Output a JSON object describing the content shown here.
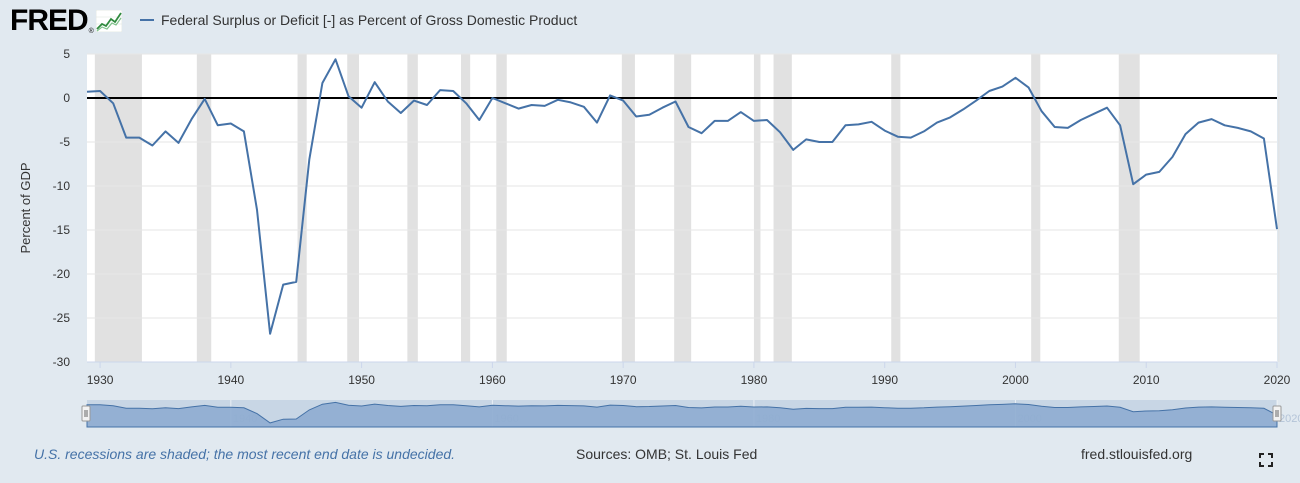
{
  "header": {
    "logo_text": "FRED",
    "logo_reg": "®",
    "legend_label": "Federal Surplus or Deficit [-] as Percent of Gross Domestic Product"
  },
  "footer": {
    "note": "U.S. recessions are shaded; the most recent end date is undecided.",
    "sources": "Sources: OMB; St. Louis Fed",
    "site": "fred.stlouisfed.org"
  },
  "colors": {
    "line": "#4572a7",
    "recession": "#e1e1e1",
    "zero_line": "#000000",
    "grid": "#e6e6e6",
    "background": "#e1e9f0",
    "plot": "#ffffff",
    "navigator_fill": "#8eacd0",
    "navigator_bg": "#c8d6e5"
  },
  "chart_data": {
    "type": "line",
    "title": "",
    "xlabel": "",
    "ylabel": "Percent of GDP",
    "xlim": [
      1929,
      2020
    ],
    "ylim": [
      -30,
      5
    ],
    "yticks": [
      5,
      0,
      -5,
      -10,
      -15,
      -20,
      -25,
      -30
    ],
    "xticks": [
      1930,
      1940,
      1950,
      1960,
      1970,
      1980,
      1990,
      2000,
      2010,
      2020
    ],
    "navigator_ticks": [
      1940,
      1960,
      1980,
      2000,
      2020
    ],
    "recessions": [
      [
        1929.6,
        1933.2
      ],
      [
        1937.4,
        1938.5
      ],
      [
        1945.1,
        1945.8
      ],
      [
        1948.9,
        1949.8
      ],
      [
        1953.5,
        1954.3
      ],
      [
        1957.6,
        1958.3
      ],
      [
        1960.3,
        1961.1
      ],
      [
        1969.9,
        1970.9
      ],
      [
        1973.9,
        1975.2
      ],
      [
        1980.0,
        1980.5
      ],
      [
        1981.5,
        1982.9
      ],
      [
        1990.5,
        1991.2
      ],
      [
        2001.2,
        2001.9
      ],
      [
        2007.9,
        2009.5
      ],
      [
        2020.1,
        2020.4
      ]
    ],
    "series": [
      {
        "name": "Federal Surplus or Deficit [-] as Percent of Gross Domestic Product",
        "x": [
          1929,
          1930,
          1931,
          1932,
          1933,
          1934,
          1935,
          1936,
          1937,
          1938,
          1939,
          1940,
          1941,
          1942,
          1943,
          1944,
          1945,
          1946,
          1947,
          1948,
          1949,
          1950,
          1951,
          1952,
          1953,
          1954,
          1955,
          1956,
          1957,
          1958,
          1959,
          1960,
          1961,
          1962,
          1963,
          1964,
          1965,
          1966,
          1967,
          1968,
          1969,
          1970,
          1971,
          1972,
          1973,
          1974,
          1975,
          1976,
          1977,
          1978,
          1979,
          1980,
          1981,
          1982,
          1983,
          1984,
          1985,
          1986,
          1987,
          1988,
          1989,
          1990,
          1991,
          1992,
          1993,
          1994,
          1995,
          1996,
          1997,
          1998,
          1999,
          2000,
          2001,
          2002,
          2003,
          2004,
          2005,
          2006,
          2007,
          2008,
          2009,
          2010,
          2011,
          2012,
          2013,
          2014,
          2015,
          2016,
          2017,
          2018,
          2019,
          2020
        ],
        "values": [
          0.7,
          0.8,
          -0.6,
          -4.5,
          -4.5,
          -5.4,
          -3.8,
          -5.1,
          -2.4,
          -0.1,
          -3.1,
          -2.9,
          -3.8,
          -12.7,
          -26.8,
          -21.2,
          -20.9,
          -7.0,
          1.7,
          4.4,
          0.2,
          -1.1,
          1.8,
          -0.4,
          -1.7,
          -0.3,
          -0.8,
          0.9,
          0.8,
          -0.6,
          -2.5,
          0.0,
          -0.6,
          -1.2,
          -0.8,
          -0.9,
          -0.2,
          -0.5,
          -1.0,
          -2.8,
          0.3,
          -0.3,
          -2.1,
          -1.9,
          -1.1,
          -0.4,
          -3.3,
          -4.0,
          -2.6,
          -2.6,
          -1.6,
          -2.6,
          -2.5,
          -3.9,
          -5.9,
          -4.7,
          -5.0,
          -5.0,
          -3.1,
          -3.0,
          -2.7,
          -3.7,
          -4.4,
          -4.5,
          -3.8,
          -2.8,
          -2.2,
          -1.3,
          -0.3,
          0.8,
          1.3,
          2.3,
          1.2,
          -1.5,
          -3.3,
          -3.4,
          -2.5,
          -1.8,
          -1.1,
          -3.1,
          -9.8,
          -8.7,
          -8.4,
          -6.7,
          -4.1,
          -2.8,
          -2.4,
          -3.1,
          -3.4,
          -3.8,
          -4.6,
          -14.9
        ]
      }
    ]
  }
}
